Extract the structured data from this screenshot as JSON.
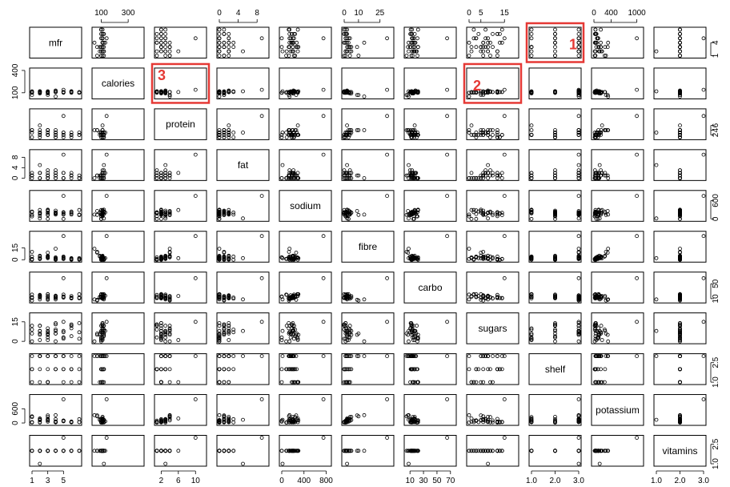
{
  "chart_data": {
    "type": "scatter",
    "title": "",
    "variables": [
      "mfr",
      "calories",
      "protein",
      "fat",
      "sodium",
      "fibre",
      "carbo",
      "sugars",
      "shelf",
      "potassium",
      "vitamins"
    ],
    "ranges": {
      "mfr": [
        1,
        7
      ],
      "calories": [
        50,
        400
      ],
      "protein": [
        1,
        12
      ],
      "fat": [
        0,
        10
      ],
      "sodium": [
        0,
        850
      ],
      "fibre": [
        0,
        33
      ],
      "carbo": [
        5,
        75
      ],
      "sugars": [
        0,
        20
      ],
      "shelf": [
        1,
        3
      ],
      "potassium": [
        0,
        1100
      ],
      "vitamins": [
        1,
        3
      ]
    },
    "ticks": {
      "mfr": [
        "1",
        "3",
        "5"
      ],
      "calories": [
        "100",
        "300"
      ],
      "protein": [
        "2",
        "6",
        "10"
      ],
      "fat": [
        "0",
        "4",
        "8"
      ],
      "sodium": [
        "0",
        "400",
        "800"
      ],
      "fibre": [
        "0",
        "10",
        "25"
      ],
      "carbo": [
        "10",
        "30",
        "50",
        "70"
      ],
      "sugars": [
        "0",
        "5",
        "15"
      ],
      "shelf": [
        "1.0",
        "2.0",
        "3.0"
      ],
      "potassium": [
        "0",
        "400",
        "1000"
      ],
      "vitamins": [
        "1.0",
        "2.0",
        "3.0"
      ]
    },
    "left_axis_ticks": {
      "calories": [
        "100",
        "400"
      ],
      "fat": [
        "0",
        "4",
        "8"
      ],
      "fibre": [
        "0",
        "15"
      ],
      "sugars": [
        "0",
        "15"
      ],
      "potassium": [
        "0",
        "600"
      ]
    },
    "right_axis_ticks": {
      "mfr": [
        "1",
        "4"
      ],
      "protein": [
        "2",
        "4",
        "6"
      ],
      "sodium": [
        "0",
        "600"
      ],
      "carbo": [
        "10",
        "50"
      ],
      "shelf": [
        "1.0",
        "2.5"
      ],
      "vitamins": [
        "1.0",
        "2.5"
      ]
    },
    "grid": false,
    "point_marker": "open-circle",
    "highlights": [
      {
        "label": "1",
        "row": "mfr",
        "col": "shelf",
        "color": "#e53935"
      },
      {
        "label": "2",
        "row": "calories",
        "col": "sugars",
        "color": "#e53935"
      },
      {
        "label": "3",
        "row": "calories",
        "col": "protein",
        "color": "#e53935"
      }
    ],
    "data": {
      "mfr": [
        1,
        2,
        3,
        4,
        5,
        6,
        7,
        4,
        3,
        2,
        1,
        2,
        4,
        5,
        6,
        3,
        7,
        2,
        4,
        3,
        1,
        5,
        6,
        2,
        3,
        4,
        5,
        6,
        3,
        2,
        7,
        4,
        3,
        5,
        6,
        2,
        1,
        3,
        4,
        5
      ],
      "calories": [
        70,
        120,
        70,
        50,
        110,
        110,
        110,
        130,
        90,
        90,
        120,
        110,
        120,
        110,
        110,
        110,
        100,
        110,
        110,
        110,
        100,
        110,
        100,
        100,
        110,
        110,
        100,
        120,
        120,
        110,
        100,
        110,
        100,
        110,
        120,
        120,
        110,
        110,
        110,
        140
      ],
      "protein": [
        4,
        3,
        4,
        4,
        2,
        2,
        2,
        3,
        2,
        3,
        1,
        6,
        1,
        3,
        1,
        2,
        2,
        1,
        1,
        3,
        3,
        2,
        2,
        2,
        4,
        2,
        1,
        2,
        2,
        4,
        3,
        3,
        2,
        3,
        3,
        2,
        4,
        4,
        2,
        10
      ],
      "fat": [
        1,
        5,
        1,
        0,
        2,
        2,
        0,
        2,
        1,
        0,
        2,
        2,
        3,
        2,
        1,
        0,
        0,
        0,
        1,
        3,
        0,
        0,
        1,
        0,
        1,
        2,
        0,
        0,
        0,
        2,
        1,
        1,
        0,
        0,
        1,
        2,
        1,
        2,
        0,
        9
      ],
      "sodium": [
        130,
        15,
        260,
        140,
        200,
        180,
        125,
        210,
        200,
        210,
        220,
        290,
        210,
        140,
        180,
        280,
        290,
        90,
        180,
        140,
        80,
        220,
        140,
        190,
        125,
        200,
        0,
        240,
        300,
        190,
        140,
        270,
        0,
        160,
        220,
        160,
        240,
        200,
        170,
        750
      ],
      "fibre": [
        10,
        2,
        9,
        14,
        1,
        1.5,
        1,
        2,
        4,
        5,
        0,
        2,
        0,
        2,
        0,
        3,
        0,
        1,
        0,
        4,
        1,
        1,
        0,
        1,
        3,
        1,
        3,
        2,
        2,
        4,
        2,
        3,
        3,
        4,
        1,
        2,
        4,
        5,
        1,
        30
      ],
      "carbo": [
        5,
        8,
        7,
        8,
        14,
        10.5,
        11,
        18,
        15,
        13,
        12,
        17,
        13,
        13,
        12,
        22,
        22,
        20,
        12,
        10,
        21,
        21,
        13,
        16,
        11,
        12,
        16,
        17,
        22,
        15,
        13,
        17,
        15,
        14,
        12,
        19,
        14,
        17,
        15,
        65
      ],
      "sugars": [
        6,
        8,
        5,
        0,
        8,
        10,
        14,
        8,
        6,
        5,
        12,
        1,
        9,
        7,
        13,
        3,
        2,
        12,
        13,
        7,
        0,
        2,
        12,
        8,
        10,
        14,
        3,
        4,
        5,
        12,
        7,
        6,
        1,
        3,
        12,
        6,
        9,
        8,
        6,
        15
      ],
      "shelf": [
        3,
        3,
        3,
        3,
        3,
        1,
        2,
        3,
        1,
        3,
        2,
        1,
        2,
        3,
        2,
        1,
        1,
        2,
        2,
        3,
        2,
        1,
        2,
        3,
        3,
        3,
        2,
        2,
        1,
        3,
        3,
        2,
        1,
        2,
        3,
        3,
        1,
        2,
        3,
        3
      ],
      "potassium": [
        280,
        135,
        320,
        330,
        70,
        30,
        35,
        65,
        160,
        125,
        35,
        190,
        25,
        100,
        45,
        110,
        35,
        20,
        25,
        160,
        20,
        95,
        25,
        35,
        105,
        45,
        95,
        35,
        110,
        170,
        160,
        160,
        55,
        90,
        60,
        120,
        250,
        260,
        40,
        1000
      ],
      "vitamins": [
        2,
        1,
        2,
        2,
        2,
        2,
        2,
        2,
        2,
        2,
        2,
        2,
        2,
        2,
        2,
        2,
        2,
        2,
        2,
        2,
        2,
        2,
        2,
        2,
        2,
        2,
        2,
        2,
        2,
        2,
        2,
        2,
        2,
        2,
        2,
        2,
        2,
        2,
        2,
        3
      ]
    }
  }
}
